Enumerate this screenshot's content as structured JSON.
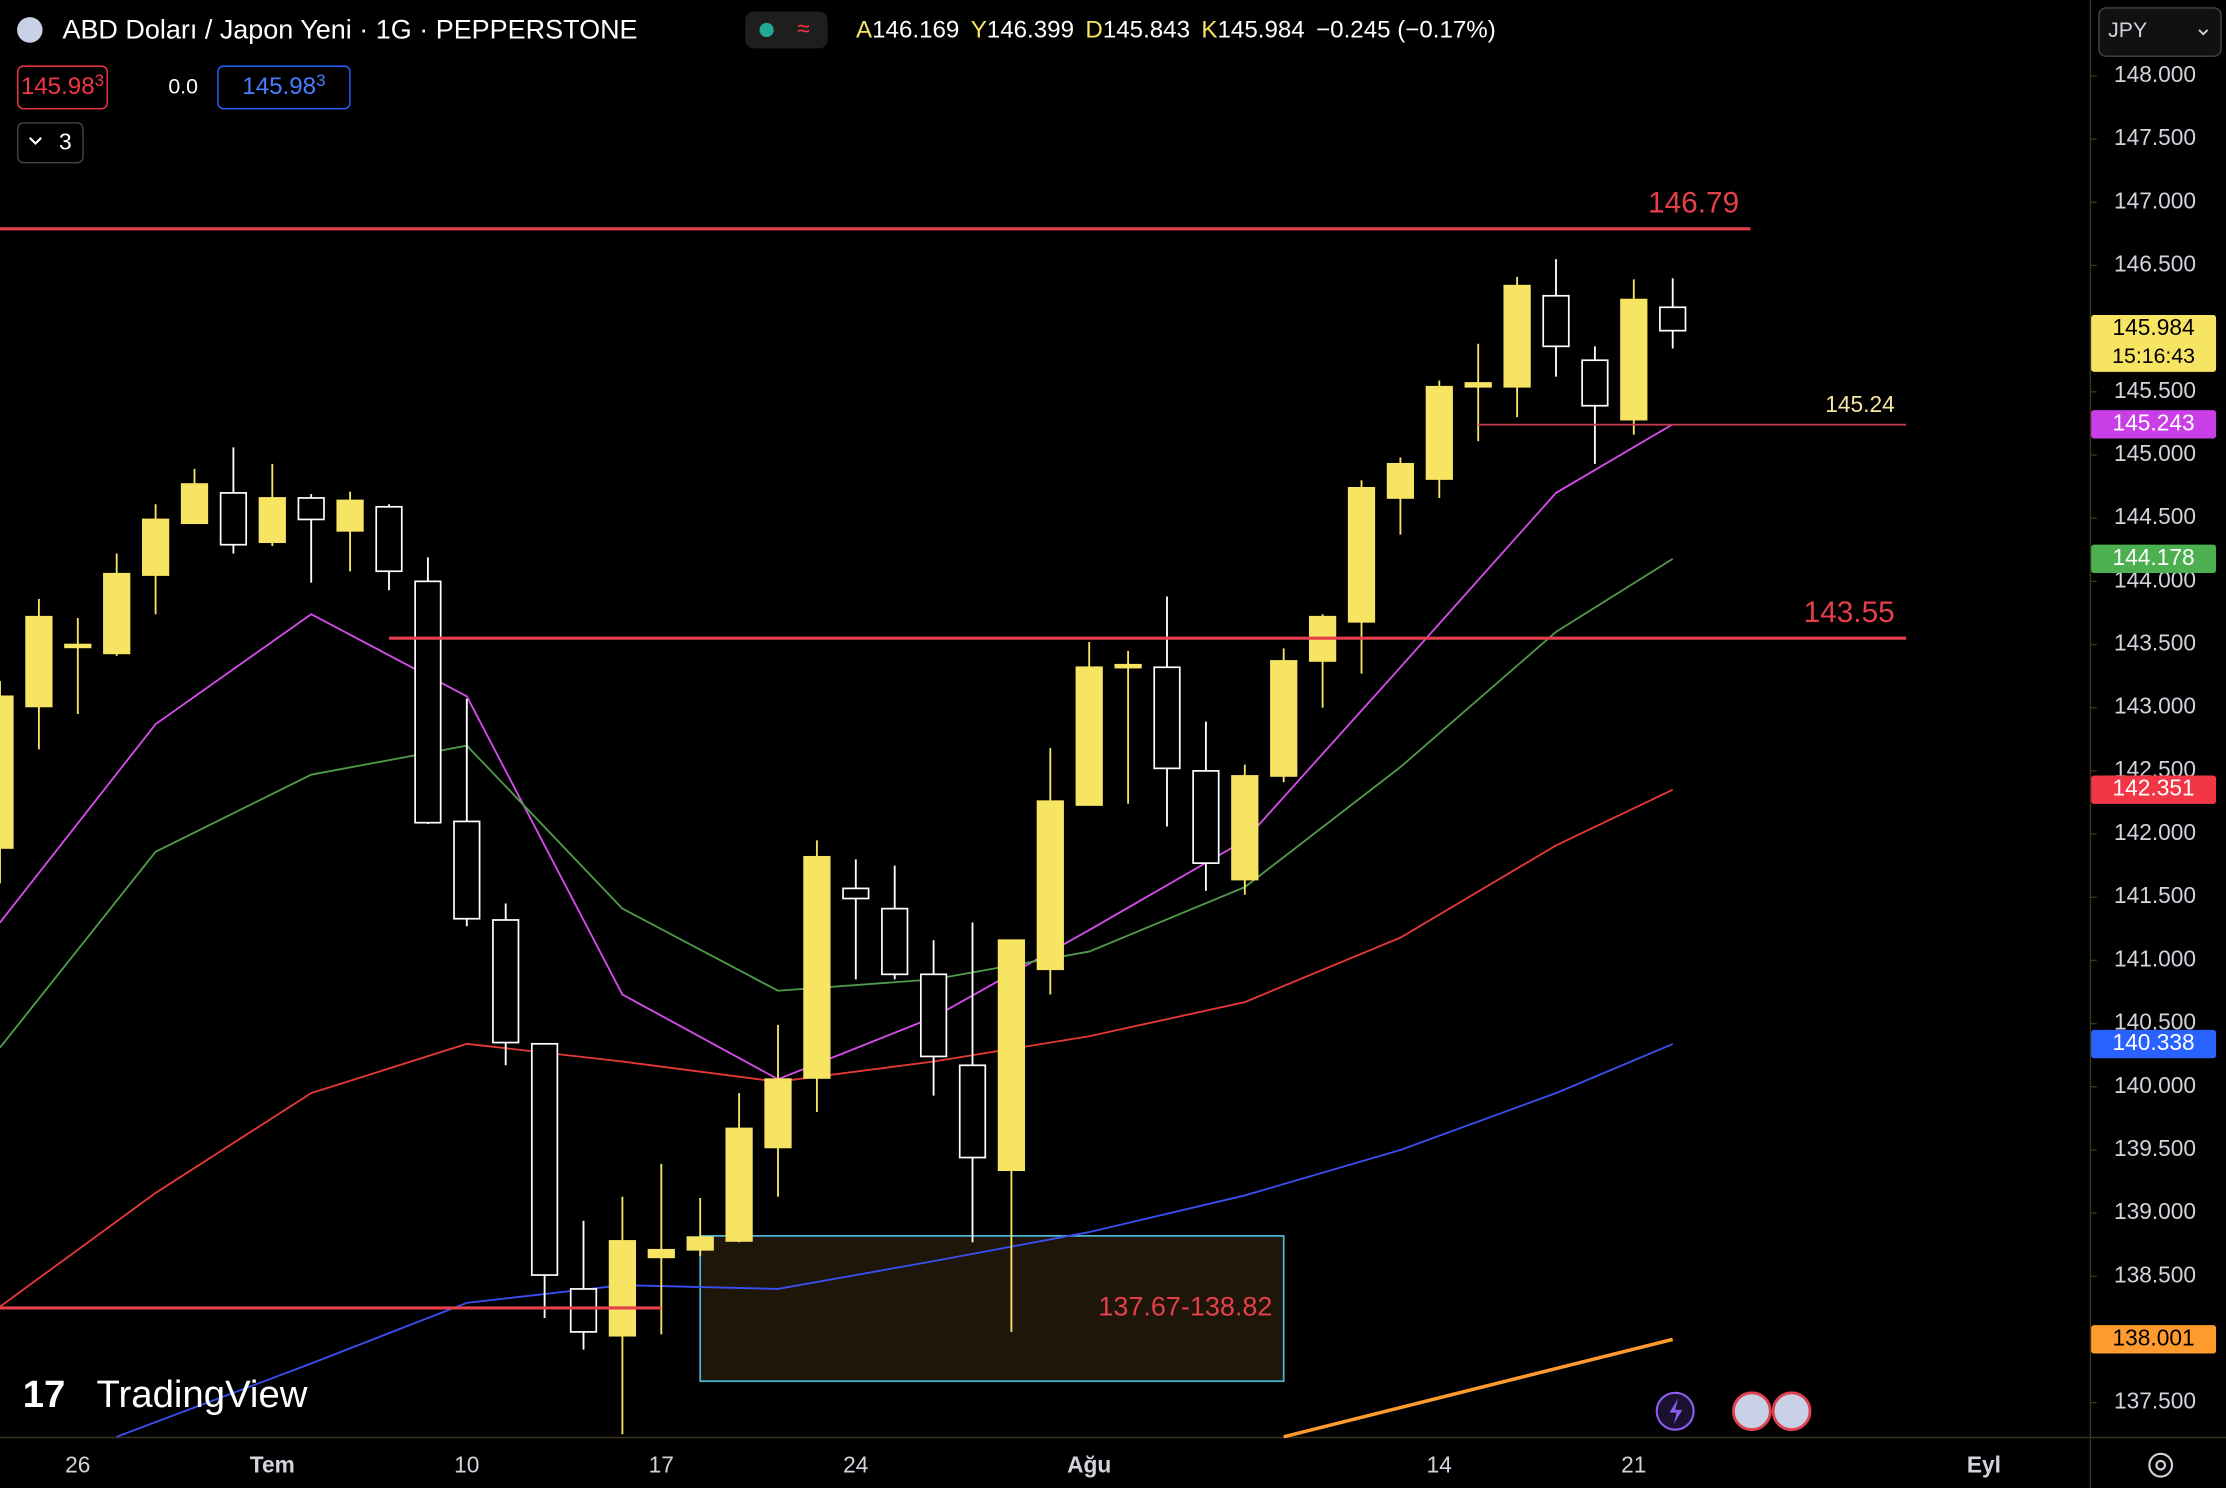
{
  "header": {
    "title": "ABD Doları / Japon Yeni · 1G · PEPPERSTONE",
    "ohlc": [
      {
        "key": "A",
        "value": "146.169"
      },
      {
        "key": "Y",
        "value": "146.399"
      },
      {
        "key": "D",
        "value": "145.843"
      },
      {
        "key": "K",
        "value": "145.984"
      }
    ],
    "change": "−0.245 (−0.17%)",
    "sell": "145.98",
    "sell_pip": "3",
    "spread": "0.0",
    "buy": "145.98",
    "buy_pip": "3",
    "indicators": "3",
    "currency": "JPY",
    "countdown": "15:16:43",
    "logo": "TradingView"
  },
  "chart_data": {
    "type": "candlestick",
    "up_color": "#f7e463",
    "down_color": "#000000",
    "down_stroke": "#ffffff",
    "xlim": [
      0,
      53.72
    ],
    "ylim": [
      137.23,
      148.6
    ],
    "yticks": [
      {
        "value": 137.5,
        "label": "137.500"
      },
      {
        "value": 138,
        "label": "138.000"
      },
      {
        "value": 138.5,
        "label": "138.500"
      },
      {
        "value": 139,
        "label": "139.000"
      },
      {
        "value": 139.5,
        "label": "139.500"
      },
      {
        "value": 140,
        "label": "140.000"
      },
      {
        "value": 140.5,
        "label": "140.500"
      },
      {
        "value": 141,
        "label": "141.000"
      },
      {
        "value": 141.5,
        "label": "141.500"
      },
      {
        "value": 142,
        "label": "142.000"
      },
      {
        "value": 142.5,
        "label": "142.500"
      },
      {
        "value": 143,
        "label": "143.000"
      },
      {
        "value": 143.5,
        "label": "143.500"
      },
      {
        "value": 144,
        "label": "144.000"
      },
      {
        "value": 144.5,
        "label": "144.500"
      },
      {
        "value": 145,
        "label": "145.000"
      },
      {
        "value": 145.5,
        "label": "145.500"
      },
      {
        "value": 146,
        "label": "146.000"
      },
      {
        "value": 146.5,
        "label": "146.500"
      },
      {
        "value": 147,
        "label": "147.000"
      },
      {
        "value": 147.5,
        "label": "147.500"
      },
      {
        "value": 148,
        "label": "148.000"
      }
    ],
    "time_labels": [
      {
        "at": 2,
        "label": "26"
      },
      {
        "at": 7,
        "label": "Tem"
      },
      {
        "at": 12,
        "label": "10"
      },
      {
        "at": 17,
        "label": "17"
      },
      {
        "at": 22,
        "label": "24"
      },
      {
        "at": 28,
        "label": "Ağu"
      },
      {
        "at": 37,
        "label": "14"
      },
      {
        "at": 42,
        "label": "21"
      },
      {
        "at": 51,
        "label": "Eyl"
      }
    ],
    "candles": {
      "open": [
        141.89,
        143.01,
        143.48,
        143.43,
        144.05,
        144.46,
        144.7,
        144.31,
        144.66,
        144.4,
        144.59,
        144.0,
        142.1,
        141.32,
        140.34,
        138.4,
        138.03,
        138.65,
        138.71,
        138.78,
        139.52,
        140.07,
        141.57,
        141.41,
        140.89,
        140.17,
        139.34,
        140.93,
        142.23,
        143.32,
        143.32,
        142.5,
        141.64,
        142.46,
        143.37,
        143.68,
        144.66,
        144.81,
        145.54,
        145.54,
        146.26,
        145.75,
        145.28,
        146.169
      ],
      "high": [
        143.21,
        143.86,
        143.71,
        144.22,
        144.61,
        144.89,
        145.06,
        144.93,
        144.69,
        144.71,
        144.61,
        144.19,
        143.07,
        141.45,
        140.34,
        138.94,
        139.13,
        139.39,
        139.12,
        139.95,
        140.49,
        141.95,
        141.8,
        141.75,
        141.16,
        141.3,
        141.16,
        142.68,
        143.52,
        143.45,
        143.88,
        142.89,
        142.55,
        143.47,
        143.74,
        144.8,
        144.98,
        145.59,
        145.88,
        146.41,
        146.55,
        145.86,
        146.39,
        146.399
      ],
      "low": [
        141.61,
        142.67,
        142.95,
        143.41,
        143.74,
        144.46,
        144.22,
        144.28,
        143.99,
        144.08,
        143.93,
        142.08,
        141.27,
        140.17,
        138.17,
        137.92,
        137.25,
        138.04,
        138.66,
        138.77,
        139.13,
        139.8,
        140.85,
        140.85,
        139.93,
        138.77,
        138.06,
        140.73,
        142.23,
        142.24,
        142.06,
        141.55,
        141.52,
        142.41,
        143.0,
        143.27,
        144.37,
        144.66,
        145.11,
        145.3,
        145.62,
        144.93,
        145.16,
        145.843
      ],
      "close": [
        143.09,
        143.72,
        143.5,
        144.06,
        144.49,
        144.77,
        144.29,
        144.66,
        144.49,
        144.64,
        144.08,
        142.09,
        141.33,
        140.35,
        138.51,
        138.06,
        138.78,
        138.71,
        138.81,
        139.67,
        140.06,
        141.82,
        141.49,
        140.89,
        140.24,
        139.44,
        141.16,
        142.26,
        143.32,
        143.34,
        142.52,
        141.77,
        142.46,
        143.37,
        143.72,
        144.74,
        144.93,
        145.54,
        145.57,
        146.34,
        145.86,
        145.39,
        146.23,
        145.984
      ]
    },
    "series": [
      {
        "color": "#d34ce8",
        "badge_color": "#c93ee6",
        "x": [
          0,
          4,
          8,
          12,
          16,
          20,
          24,
          28,
          32,
          36,
          40,
          43
        ],
        "values": [
          141.3,
          142.87,
          143.74,
          143.09,
          140.73,
          140.06,
          140.55,
          141.24,
          141.95,
          143.32,
          144.7,
          145.243
        ]
      },
      {
        "color": "#4f9a48",
        "badge_color": "#4caf50",
        "x": [
          0,
          4,
          8,
          12,
          16,
          20,
          24,
          28,
          32,
          36,
          40,
          43
        ],
        "values": [
          140.31,
          141.86,
          142.47,
          142.7,
          141.41,
          140.76,
          140.85,
          141.07,
          141.58,
          142.53,
          143.6,
          144.178
        ]
      },
      {
        "color": "#e53935",
        "badge_color": "#f23645",
        "x": [
          0,
          4,
          8,
          12,
          16,
          20,
          24,
          28,
          32,
          36,
          40,
          43
        ],
        "values": [
          138.26,
          139.16,
          139.95,
          140.34,
          140.2,
          140.04,
          140.2,
          140.4,
          140.67,
          141.18,
          141.91,
          142.351
        ]
      },
      {
        "color": "#3a4ff0",
        "badge_color": "#2962ff",
        "x": [
          3,
          8,
          12,
          16,
          20,
          24,
          28,
          32,
          36,
          40,
          43
        ],
        "values": [
          137.23,
          137.81,
          138.29,
          138.43,
          138.4,
          138.62,
          138.85,
          139.14,
          139.5,
          139.95,
          140.338
        ]
      },
      {
        "color": "#ff9a2e",
        "badge_color": "#ff9a2e",
        "x": [
          33,
          43
        ],
        "values": [
          137.23,
          138.001
        ]
      }
    ],
    "levels": [
      {
        "value": 146.79,
        "label": "146.79",
        "from": 0,
        "to": 45,
        "color": "#e5404a"
      },
      {
        "value": 143.55,
        "label": "143.55",
        "from": 10,
        "to": 49,
        "color": "#e5404a"
      },
      {
        "value": 145.24,
        "label": "145.24",
        "from": 38,
        "to": 49,
        "color": "#c0394a"
      },
      {
        "value": 138.25,
        "from": 0,
        "to": 17,
        "color": "#e5404a"
      }
    ],
    "zone": {
      "label": "137.67-138.82",
      "low": 137.67,
      "high": 138.82,
      "from": 18,
      "to": 33
    }
  }
}
